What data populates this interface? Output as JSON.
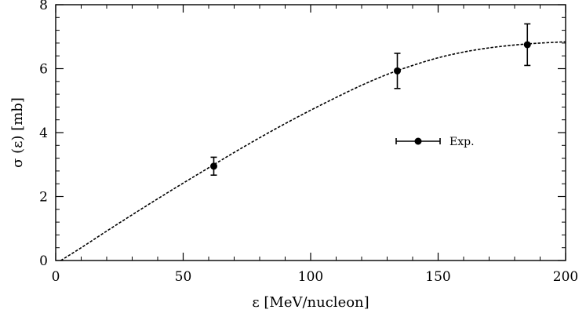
{
  "chart_data": {
    "type": "scatter",
    "xlabel": "ε  [MeV/nucleon]",
    "ylabel": "σ (ε) [mb]",
    "xlim": [
      0,
      200
    ],
    "ylim": [
      0,
      8
    ],
    "xticks": [
      0,
      50,
      100,
      150,
      200
    ],
    "yticks": [
      0,
      2,
      4,
      6,
      8
    ],
    "x_tick_labels": [
      "0",
      "50",
      "100",
      "150",
      "200"
    ],
    "y_tick_labels": [
      "0",
      "2",
      "4",
      "6",
      "8"
    ],
    "grid": false,
    "legend": {
      "placement": "center-right",
      "entries": [
        {
          "label": "Exp."
        }
      ]
    },
    "series": [
      {
        "name": "Exp.",
        "style": "points-with-errorbars",
        "x": [
          62,
          134,
          185
        ],
        "y": [
          2.95,
          5.93,
          6.75
        ],
        "yerr": [
          0.28,
          0.55,
          0.65
        ]
      },
      {
        "style": "dashed-curve",
        "x": [
          2,
          10,
          20,
          30,
          40,
          50,
          60,
          70,
          80,
          90,
          100,
          110,
          120,
          130,
          140,
          150,
          160,
          170,
          180,
          190,
          200
        ],
        "y": [
          0.0,
          0.4,
          0.92,
          1.43,
          1.93,
          2.42,
          2.9,
          3.38,
          3.84,
          4.28,
          4.7,
          5.1,
          5.48,
          5.82,
          6.1,
          6.34,
          6.52,
          6.65,
          6.74,
          6.8,
          6.84
        ]
      }
    ]
  }
}
